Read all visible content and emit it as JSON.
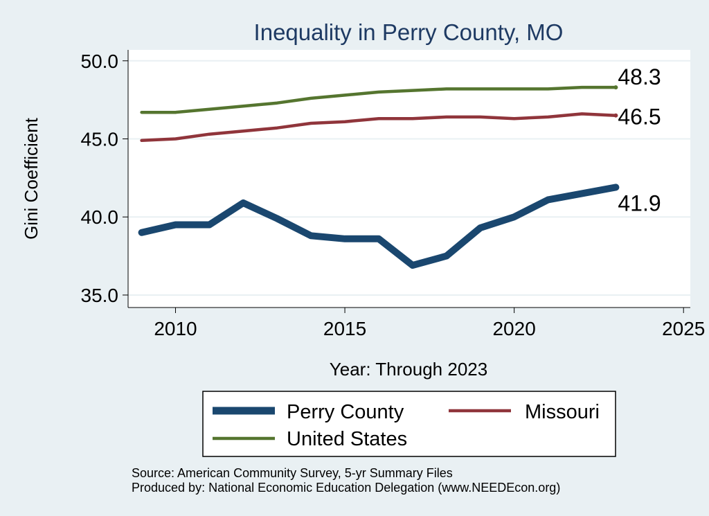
{
  "chart_data": {
    "type": "line",
    "title": "Inequality in Perry County, MO",
    "xlabel": "Year: Through 2023",
    "ylabel": "Gini Coefficient",
    "xlim": [
      2008.6,
      2025.2
    ],
    "ylim": [
      34.2,
      50.7
    ],
    "xticks": [
      "2010",
      "2015",
      "2020",
      "2025"
    ],
    "yticks": [
      "35.0",
      "40.0",
      "45.0",
      "50.0"
    ],
    "grid": true,
    "legend_position": "bottom",
    "x": [
      2009,
      2010,
      2011,
      2012,
      2013,
      2014,
      2015,
      2016,
      2017,
      2018,
      2019,
      2020,
      2021,
      2022,
      2023
    ],
    "series": [
      {
        "name": "Perry County",
        "color": "#1a476f",
        "values": [
          39.0,
          39.5,
          39.5,
          40.9,
          39.9,
          38.8,
          38.6,
          38.6,
          36.9,
          37.5,
          39.3,
          40.0,
          41.1,
          41.5,
          41.9
        ],
        "end_label": "41.9"
      },
      {
        "name": "Missouri",
        "color": "#90353b",
        "values": [
          44.9,
          45.0,
          45.3,
          45.5,
          45.7,
          46.0,
          46.1,
          46.3,
          46.3,
          46.4,
          46.4,
          46.3,
          46.4,
          46.6,
          46.5
        ],
        "end_label": "46.5"
      },
      {
        "name": "United States",
        "color": "#55752f",
        "values": [
          46.7,
          46.7,
          46.9,
          47.1,
          47.3,
          47.6,
          47.8,
          48.0,
          48.1,
          48.2,
          48.2,
          48.2,
          48.2,
          48.3,
          48.3
        ],
        "end_label": "48.3"
      }
    ],
    "source_lines": [
      "Source: American Community Survey, 5-yr Summary Files",
      "Produced by: National Economic Education Delegation (www.NEEDEcon.org)"
    ]
  }
}
